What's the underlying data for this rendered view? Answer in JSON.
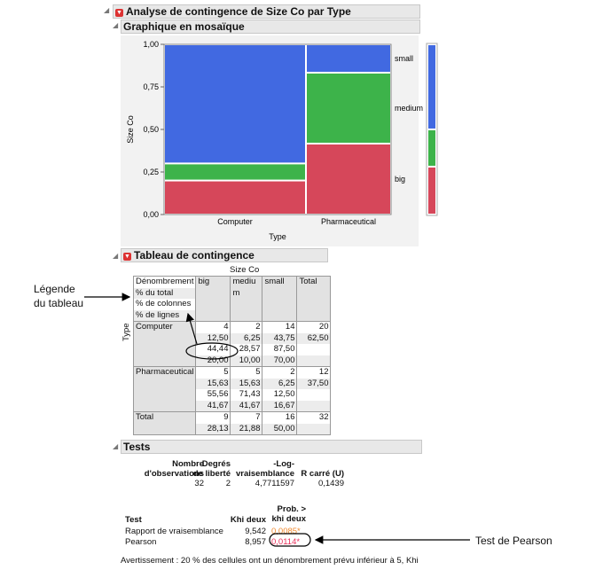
{
  "title": "Analyse de contingence de Size Co par Type",
  "mosaic": {
    "title": "Graphique en mosaïque",
    "ylabel": "Size Co",
    "xlabel": "Type",
    "yticks": [
      "0,00",
      "0,25",
      "0,50",
      "0,75",
      "1,00"
    ],
    "categories": [
      "Computer",
      "Pharmaceutical"
    ],
    "levels": [
      "big",
      "medium",
      "small"
    ],
    "colors": {
      "big": "#d6475a",
      "medium": "#3db34a",
      "small": "#4169e1"
    }
  },
  "chart_data": {
    "type": "mosaic",
    "xlabel": "Type",
    "ylabel": "Size Co",
    "ylim": [
      0,
      1
    ],
    "categories": [
      "Computer",
      "Pharmaceutical"
    ],
    "category_share": [
      0.625,
      0.375
    ],
    "series": [
      {
        "name": "big",
        "values": [
          0.2,
          0.4167
        ]
      },
      {
        "name": "medium",
        "values": [
          0.1,
          0.4167
        ]
      },
      {
        "name": "small",
        "values": [
          0.7,
          0.1667
        ]
      }
    ],
    "marginal": {
      "big": 0.2813,
      "medium": 0.2188,
      "small": 0.5
    }
  },
  "table": {
    "title": "Tableau de contingence",
    "col_var": "Size Co",
    "row_var": "Type",
    "legend": [
      "Dénombrement",
      "% du total",
      "% de colonnes",
      "% de lignes"
    ],
    "headers": [
      "big",
      "mediu m",
      "small",
      "Total"
    ],
    "rows": [
      {
        "label": "Computer",
        "cells": [
          [
            "4",
            "12,50",
            "44,44",
            "20,00"
          ],
          [
            "2",
            "6,25",
            "28,57",
            "10,00"
          ],
          [
            "14",
            "43,75",
            "87,50",
            "70,00"
          ],
          [
            "20",
            "62,50",
            "",
            ""
          ]
        ]
      },
      {
        "label": "Pharmaceutical",
        "cells": [
          [
            "5",
            "15,63",
            "55,56",
            "41,67"
          ],
          [
            "5",
            "15,63",
            "71,43",
            "41,67"
          ],
          [
            "2",
            "6,25",
            "12,50",
            "16,67"
          ],
          [
            "12",
            "37,50",
            "",
            ""
          ]
        ]
      },
      {
        "label": "Total",
        "cells": [
          [
            "9",
            "28,13"
          ],
          [
            "7",
            "21,88"
          ],
          [
            "16",
            "50,00"
          ],
          [
            "32",
            ""
          ]
        ]
      }
    ]
  },
  "tests": {
    "title": "Tests",
    "h1": [
      "Nombre",
      "d'observations"
    ],
    "h2": [
      "Degrés",
      "de liberté"
    ],
    "h3": [
      "-Log-",
      "vraisemblance"
    ],
    "h4": [
      "",
      "R carré (U)"
    ],
    "v": [
      "32",
      "2",
      "4,7711597",
      "0,1439"
    ],
    "th": [
      "Test",
      "Khi deux",
      "Prob. >",
      "khi deux"
    ],
    "rows": [
      [
        "Rapport de vraisemblance",
        "9,542",
        "0,0085*"
      ],
      [
        "Pearson",
        "8,957",
        "0,0114*"
      ]
    ],
    "warning": "Avertissement : 20 % des cellules ont un dénombrement prévu inférieur à 5, Khi"
  },
  "annotations": {
    "legend": "Légende du tableau",
    "pearson": "Test de Pearson"
  }
}
